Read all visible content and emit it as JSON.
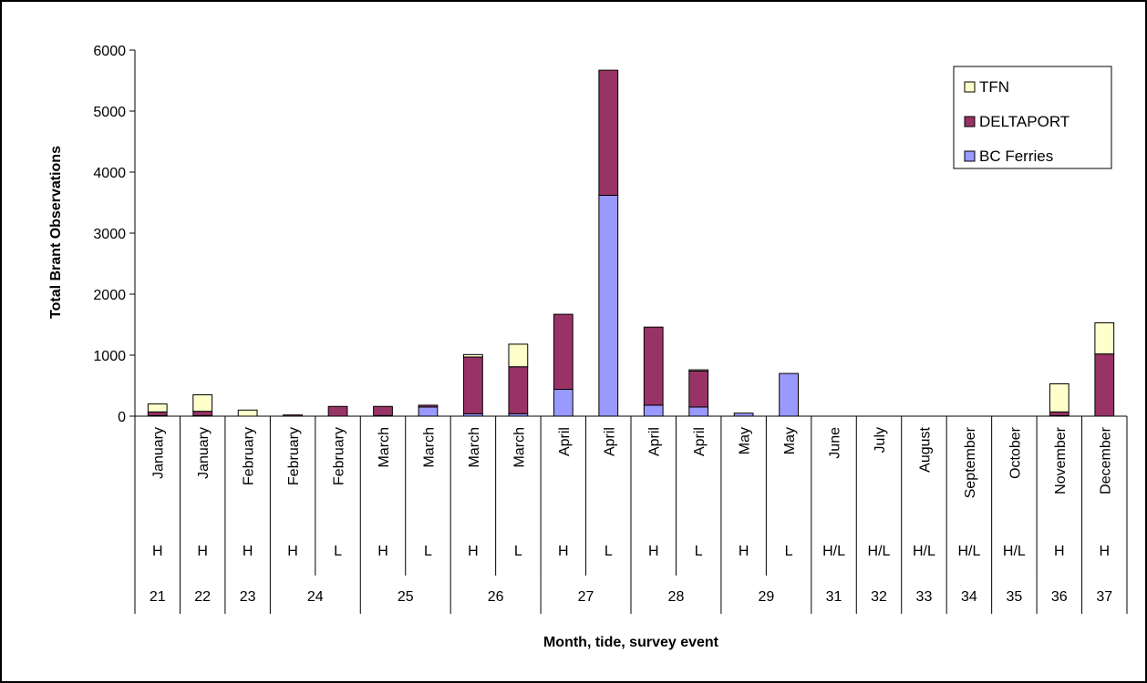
{
  "chart_data": {
    "type": "bar",
    "stacked": true,
    "ylabel": "Total Brant Observations",
    "xlabel": "Month, tide, survey event",
    "ylim": [
      0,
      6000
    ],
    "yticks": [
      0,
      1000,
      2000,
      3000,
      4000,
      5000,
      6000
    ],
    "grid": false,
    "legend_position": "top-right",
    "categories": [
      {
        "month": "January",
        "tide": "H"
      },
      {
        "month": "January",
        "tide": "H"
      },
      {
        "month": "February",
        "tide": "H"
      },
      {
        "month": "February",
        "tide": "H"
      },
      {
        "month": "February",
        "tide": "L"
      },
      {
        "month": "March",
        "tide": "H"
      },
      {
        "month": "March",
        "tide": "L"
      },
      {
        "month": "March",
        "tide": "H"
      },
      {
        "month": "March",
        "tide": "L"
      },
      {
        "month": "April",
        "tide": "H"
      },
      {
        "month": "April",
        "tide": "L"
      },
      {
        "month": "April",
        "tide": "H"
      },
      {
        "month": "April",
        "tide": "L"
      },
      {
        "month": "May",
        "tide": "H"
      },
      {
        "month": "May",
        "tide": "L"
      },
      {
        "month": "June",
        "tide": "H/L"
      },
      {
        "month": "July",
        "tide": "H/L"
      },
      {
        "month": "August",
        "tide": "H/L"
      },
      {
        "month": "September",
        "tide": "H/L"
      },
      {
        "month": "October",
        "tide": "H/L"
      },
      {
        "month": "November",
        "tide": "H"
      },
      {
        "month": "December",
        "tide": "H"
      }
    ],
    "survey_events": [
      {
        "label": "21",
        "span": 1
      },
      {
        "label": "22",
        "span": 1
      },
      {
        "label": "23",
        "span": 1
      },
      {
        "label": "24",
        "span": 2
      },
      {
        "label": "25",
        "span": 2
      },
      {
        "label": "26",
        "span": 2
      },
      {
        "label": "27",
        "span": 2
      },
      {
        "label": "28",
        "span": 2
      },
      {
        "label": "29",
        "span": 2
      },
      {
        "label": "31",
        "span": 1
      },
      {
        "label": "32",
        "span": 1
      },
      {
        "label": "33",
        "span": 1
      },
      {
        "label": "34",
        "span": 1
      },
      {
        "label": "35",
        "span": 1
      },
      {
        "label": "36",
        "span": 1
      },
      {
        "label": "37",
        "span": 1
      }
    ],
    "series": [
      {
        "name": "BC Ferries",
        "color": "#9999ff",
        "values": [
          10,
          10,
          0,
          0,
          0,
          10,
          150,
          40,
          40,
          440,
          3620,
          180,
          150,
          50,
          700,
          0,
          0,
          0,
          0,
          0,
          10,
          0
        ]
      },
      {
        "name": "DELTAPORT",
        "color": "#993366",
        "values": [
          60,
          70,
          0,
          20,
          160,
          150,
          30,
          930,
          770,
          1230,
          2050,
          1280,
          590,
          0,
          0,
          0,
          0,
          0,
          0,
          0,
          60,
          1020
        ]
      },
      {
        "name": "TFN",
        "color": "#ffffcc",
        "values": [
          130,
          270,
          100,
          0,
          0,
          0,
          0,
          40,
          370,
          0,
          0,
          0,
          20,
          0,
          0,
          0,
          0,
          0,
          0,
          0,
          460,
          510
        ]
      }
    ],
    "legend_order": [
      "TFN",
      "DELTAPORT",
      "BC Ferries"
    ]
  }
}
